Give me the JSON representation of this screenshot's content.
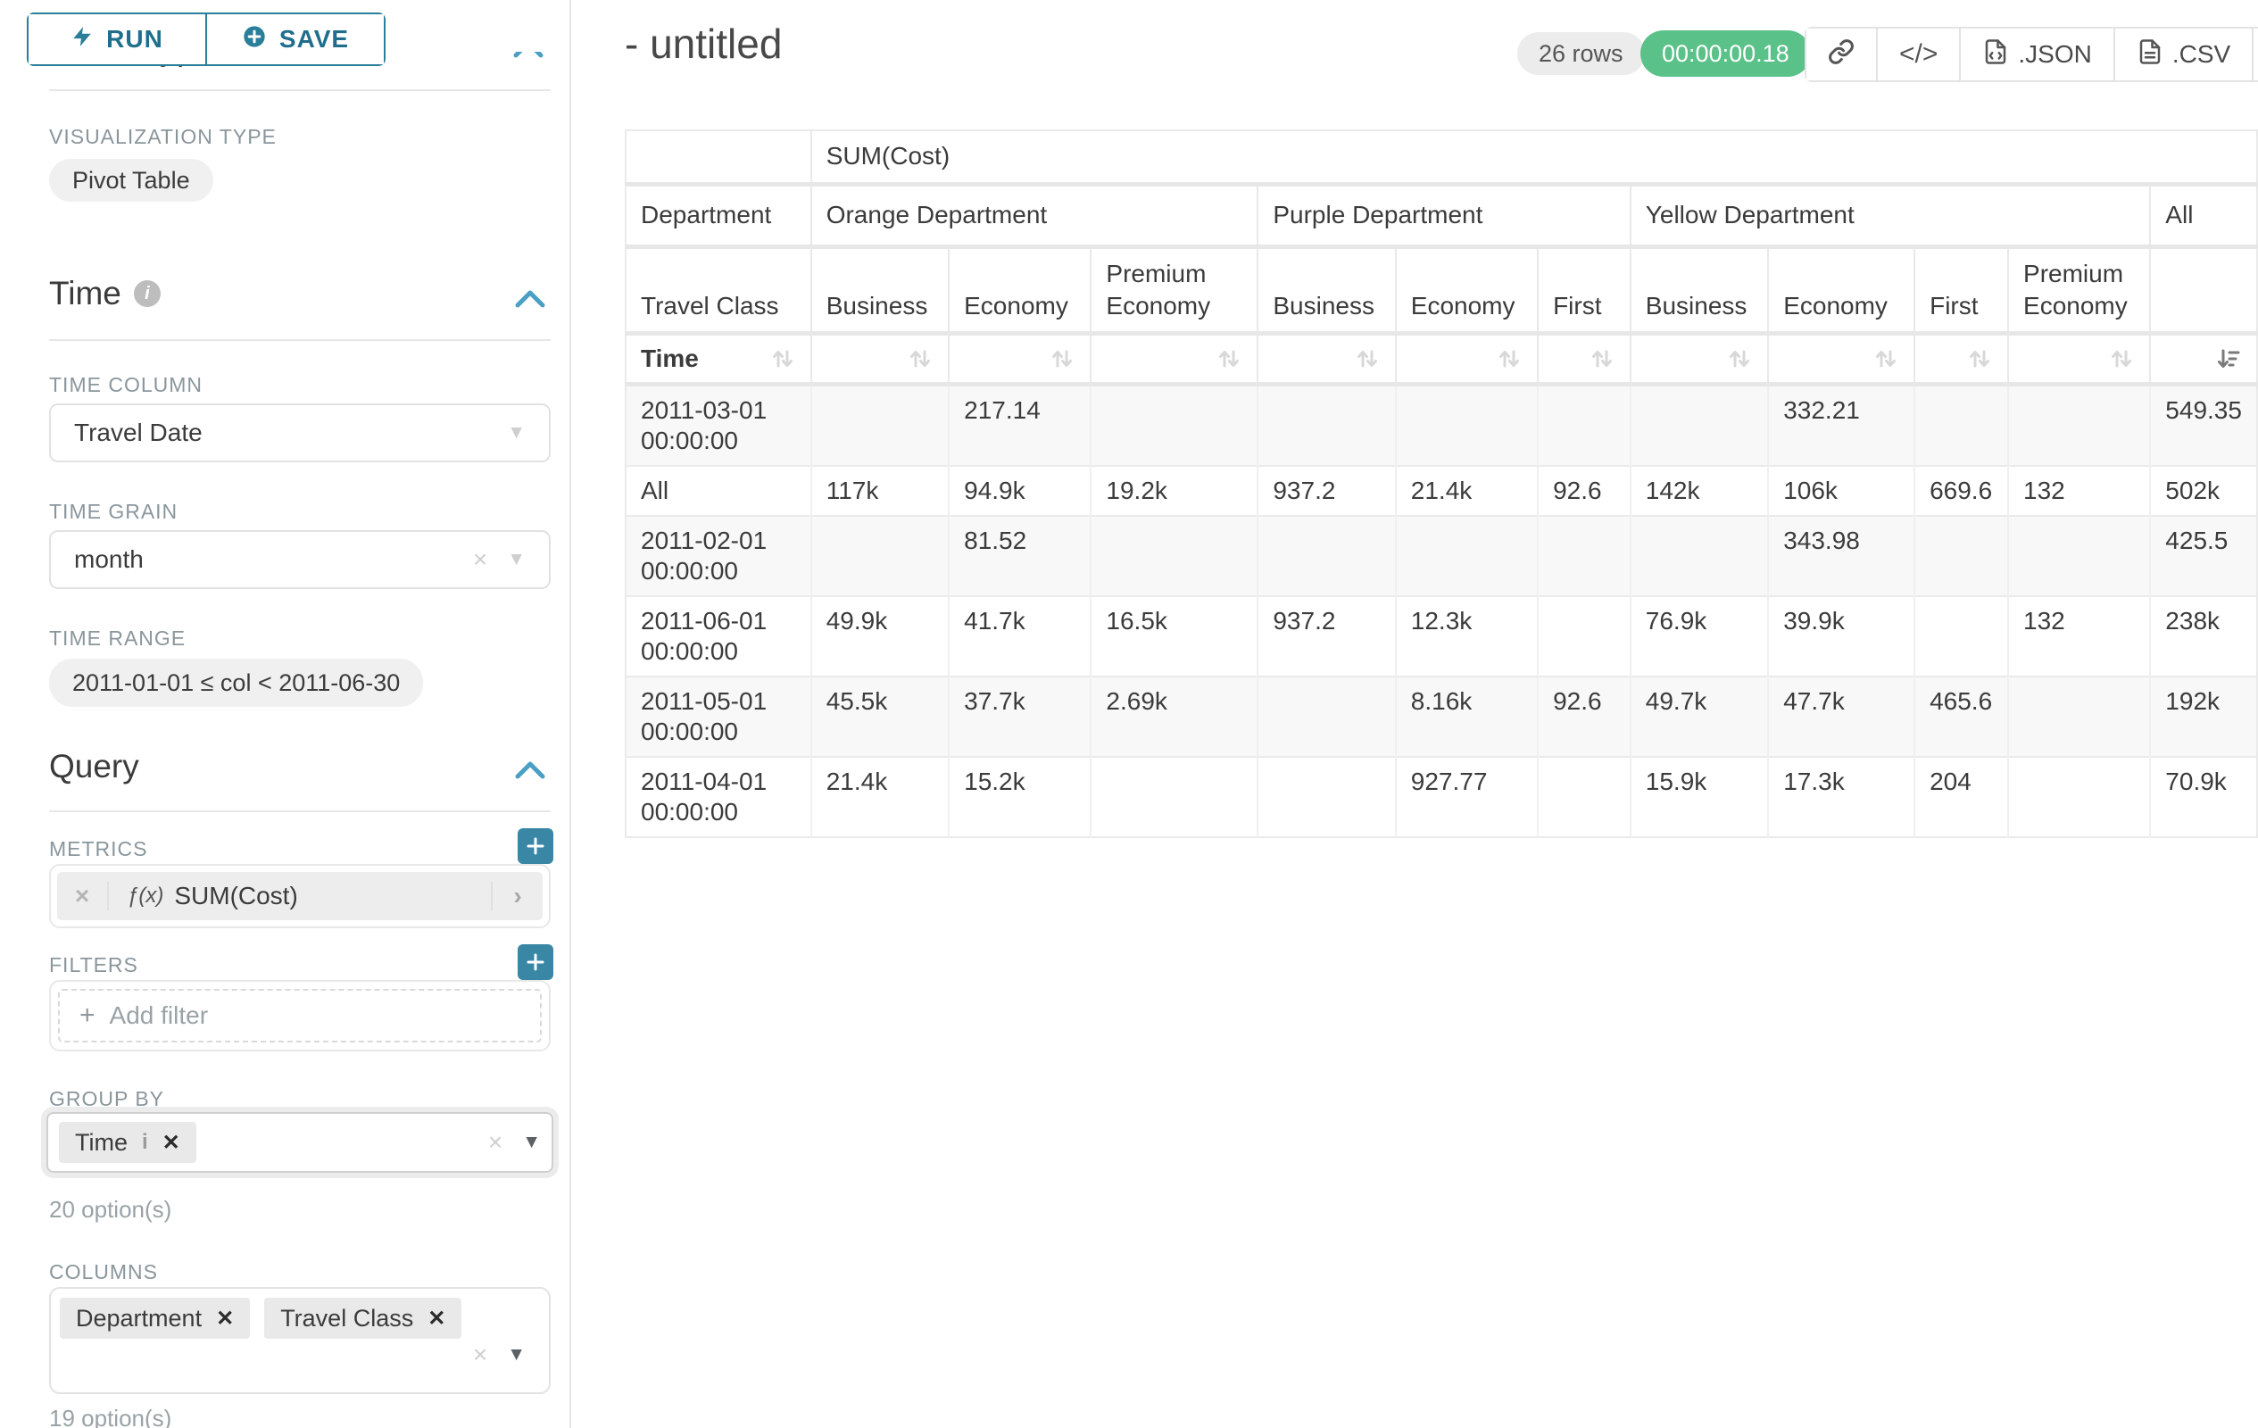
{
  "sidebar": {
    "run_label": "RUN",
    "save_label": "SAVE",
    "chart_type_heading": "Chart Type",
    "visualization_type_label": "VISUALIZATION TYPE",
    "visualization_type_value": "Pivot Table",
    "time_section": {
      "title": "Time",
      "time_column_label": "TIME COLUMN",
      "time_column_value": "Travel Date",
      "time_grain_label": "TIME GRAIN",
      "time_grain_value": "month",
      "time_range_label": "TIME RANGE",
      "time_range_value": "2011-01-01 ≤ col < 2011-06-30"
    },
    "query_section": {
      "title": "Query",
      "metrics_label": "METRICS",
      "metric_prefix": "ƒ(x)",
      "metric_value": "SUM(Cost)",
      "filters_label": "FILTERS",
      "add_filter_label": "Add filter",
      "group_by_label": "GROUP BY",
      "group_by_chips": [
        "Time"
      ],
      "group_by_hint": "20 option(s)",
      "columns_label": "COLUMNS",
      "columns_chips": [
        "Department",
        "Travel Class"
      ],
      "columns_hint": "19 option(s)"
    }
  },
  "header": {
    "title": "- untitled",
    "row_count_badge": "26 rows",
    "timer_badge": "00:00:00.18",
    "code_label": "</>",
    "json_label": ".JSON",
    "csv_label": ".CSV"
  },
  "icons": {
    "run": "lightning-icon",
    "save": "plus-circle-icon",
    "section_info": "info-icon",
    "section_collapse": "chevron-up-icon",
    "select_caret": "caret-down-icon",
    "select_clear": "clear-x-icon",
    "metric_function": "function-icon",
    "share": "link-icon",
    "embed": "code-icon",
    "json_export": "json-file-icon",
    "csv_export": "csv-file-icon",
    "menu": "menu-icon",
    "sort_inactive": "sort-arrows-icon",
    "sort_active": "sort-descending-icon"
  },
  "colors": {
    "accent": "#2a7e99",
    "plus_button": "#3a87a5",
    "success_badge": "#5ac189"
  },
  "table": {
    "metric_header": "SUM(Cost)",
    "department_label": "Department",
    "travel_class_label": "Travel Class",
    "time_label": "Time",
    "groups": [
      {
        "label": "Orange Department",
        "classes": [
          "Business",
          "Economy",
          "Premium Economy"
        ]
      },
      {
        "label": "Purple Department",
        "classes": [
          "Business",
          "Economy",
          "First"
        ]
      },
      {
        "label": "Yellow Department",
        "classes": [
          "Business",
          "Economy",
          "First",
          "Premium Economy"
        ]
      },
      {
        "label": "All",
        "classes": [
          ""
        ]
      }
    ],
    "sorted_column_index": 10,
    "rows": [
      {
        "label": "2011-03-01 00:00:00",
        "values": [
          "",
          "217.14",
          "",
          "",
          "",
          "",
          "",
          "332.21",
          "",
          "",
          "549.35"
        ]
      },
      {
        "label": "All",
        "values": [
          "117k",
          "94.9k",
          "19.2k",
          "937.2",
          "21.4k",
          "92.6",
          "142k",
          "106k",
          "669.6",
          "132",
          "502k"
        ]
      },
      {
        "label": "2011-02-01 00:00:00",
        "values": [
          "",
          "81.52",
          "",
          "",
          "",
          "",
          "",
          "343.98",
          "",
          "",
          "425.5"
        ]
      },
      {
        "label": "2011-06-01 00:00:00",
        "values": [
          "49.9k",
          "41.7k",
          "16.5k",
          "937.2",
          "12.3k",
          "",
          "76.9k",
          "39.9k",
          "",
          "132",
          "238k"
        ]
      },
      {
        "label": "2011-05-01 00:00:00",
        "values": [
          "45.5k",
          "37.7k",
          "2.69k",
          "",
          "8.16k",
          "92.6",
          "49.7k",
          "47.7k",
          "465.6",
          "",
          "192k"
        ]
      },
      {
        "label": "2011-04-01 00:00:00",
        "values": [
          "21.4k",
          "15.2k",
          "",
          "",
          "927.77",
          "",
          "15.9k",
          "17.3k",
          "204",
          "",
          "70.9k"
        ]
      }
    ]
  }
}
